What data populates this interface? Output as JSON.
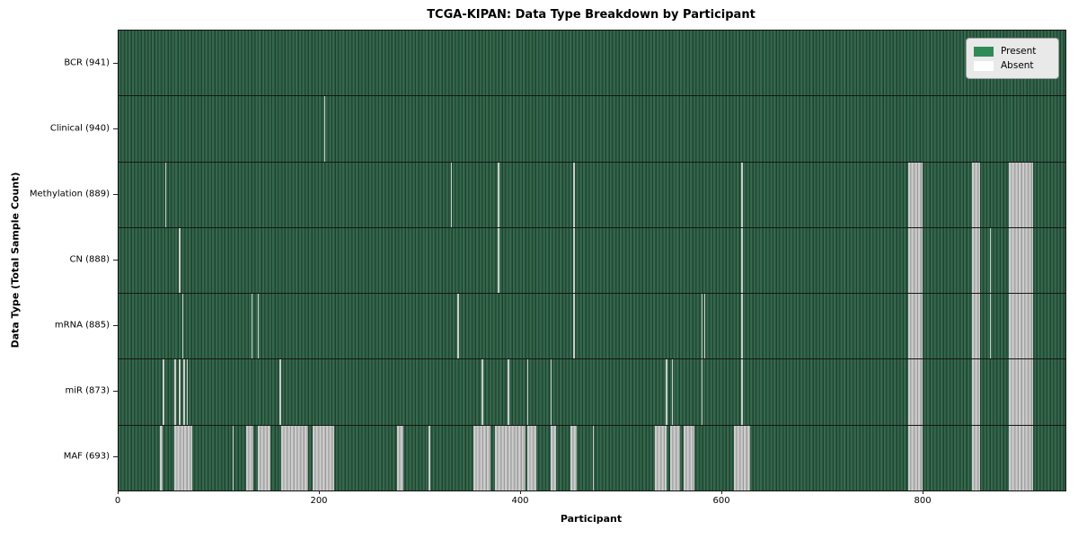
{
  "title": "TCGA-KIPAN: Data Type Breakdown by Participant",
  "xlabel": "Participant",
  "ylabel": "Data Type (Total Sample Count)",
  "legend": {
    "present_label": "Present",
    "absent_label": "Absent"
  },
  "colors": {
    "present": "#2e8b57",
    "absent": "#ffffff",
    "present_stripe_light": "#35694e",
    "present_stripe_dark": "#1d432e",
    "absent_stripe_gray": "#b4b4b4",
    "legend_background": "#e9e9e9"
  },
  "chart_data": {
    "type": "heatmap",
    "title": "TCGA-KIPAN: Data Type Breakdown by Participant",
    "xlabel": "Participant",
    "ylabel": "Data Type (Total Sample Count)",
    "x_ticks": [
      0,
      200,
      400,
      600,
      800
    ],
    "x_max": 941,
    "legend": [
      "Present",
      "Absent"
    ],
    "legend_position": "upper right",
    "rows": [
      {
        "label": "BCR (941)",
        "data_type": "BCR",
        "count": 941,
        "absent_ranges": []
      },
      {
        "label": "Clinical (940)",
        "data_type": "Clinical",
        "count": 940,
        "absent_ranges": [
          [
            204,
            204
          ]
        ]
      },
      {
        "label": "Methylation (889)",
        "data_type": "Methylation",
        "count": 889,
        "absent_ranges": [
          [
            46,
            46
          ],
          [
            330,
            330
          ],
          [
            377,
            377
          ],
          [
            452,
            452
          ],
          [
            619,
            619
          ],
          [
            785,
            798
          ],
          [
            848,
            855
          ],
          [
            885,
            908
          ]
        ]
      },
      {
        "label": "CN (888)",
        "data_type": "CN",
        "count": 888,
        "absent_ranges": [
          [
            60,
            60
          ],
          [
            377,
            377
          ],
          [
            452,
            452
          ],
          [
            619,
            619
          ],
          [
            785,
            798
          ],
          [
            848,
            855
          ],
          [
            866,
            866
          ],
          [
            885,
            908
          ]
        ]
      },
      {
        "label": "mRNA (885)",
        "data_type": "mRNA",
        "count": 885,
        "absent_ranges": [
          [
            63,
            63
          ],
          [
            132,
            132
          ],
          [
            138,
            138
          ],
          [
            337,
            337
          ],
          [
            452,
            452
          ],
          [
            579,
            579
          ],
          [
            582,
            582
          ],
          [
            619,
            619
          ],
          [
            785,
            798
          ],
          [
            848,
            855
          ],
          [
            866,
            866
          ],
          [
            885,
            908
          ]
        ]
      },
      {
        "label": "miR (873)",
        "data_type": "miR",
        "count": 873,
        "absent_ranges": [
          [
            44,
            44
          ],
          [
            55,
            56
          ],
          [
            60,
            61
          ],
          [
            64,
            65
          ],
          [
            68,
            68
          ],
          [
            160,
            160
          ],
          [
            361,
            361
          ],
          [
            387,
            387
          ],
          [
            406,
            406
          ],
          [
            429,
            429
          ],
          [
            544,
            544
          ],
          [
            550,
            550
          ],
          [
            579,
            579
          ],
          [
            619,
            619
          ],
          [
            785,
            798
          ],
          [
            848,
            855
          ],
          [
            885,
            908
          ]
        ]
      },
      {
        "label": "MAF (693)",
        "data_type": "MAF",
        "count": 693,
        "absent_ranges": [
          [
            41,
            43
          ],
          [
            55,
            72
          ],
          [
            113,
            113
          ],
          [
            127,
            133
          ],
          [
            138,
            150
          ],
          [
            162,
            187
          ],
          [
            193,
            213
          ],
          [
            277,
            282
          ],
          [
            308,
            309
          ],
          [
            353,
            369
          ],
          [
            374,
            403
          ],
          [
            406,
            414
          ],
          [
            429,
            434
          ],
          [
            449,
            454
          ],
          [
            471,
            471
          ],
          [
            533,
            544
          ],
          [
            548,
            557
          ],
          [
            562,
            571
          ],
          [
            612,
            627
          ],
          [
            785,
            798
          ],
          [
            848,
            855
          ],
          [
            885,
            908
          ]
        ]
      }
    ]
  }
}
